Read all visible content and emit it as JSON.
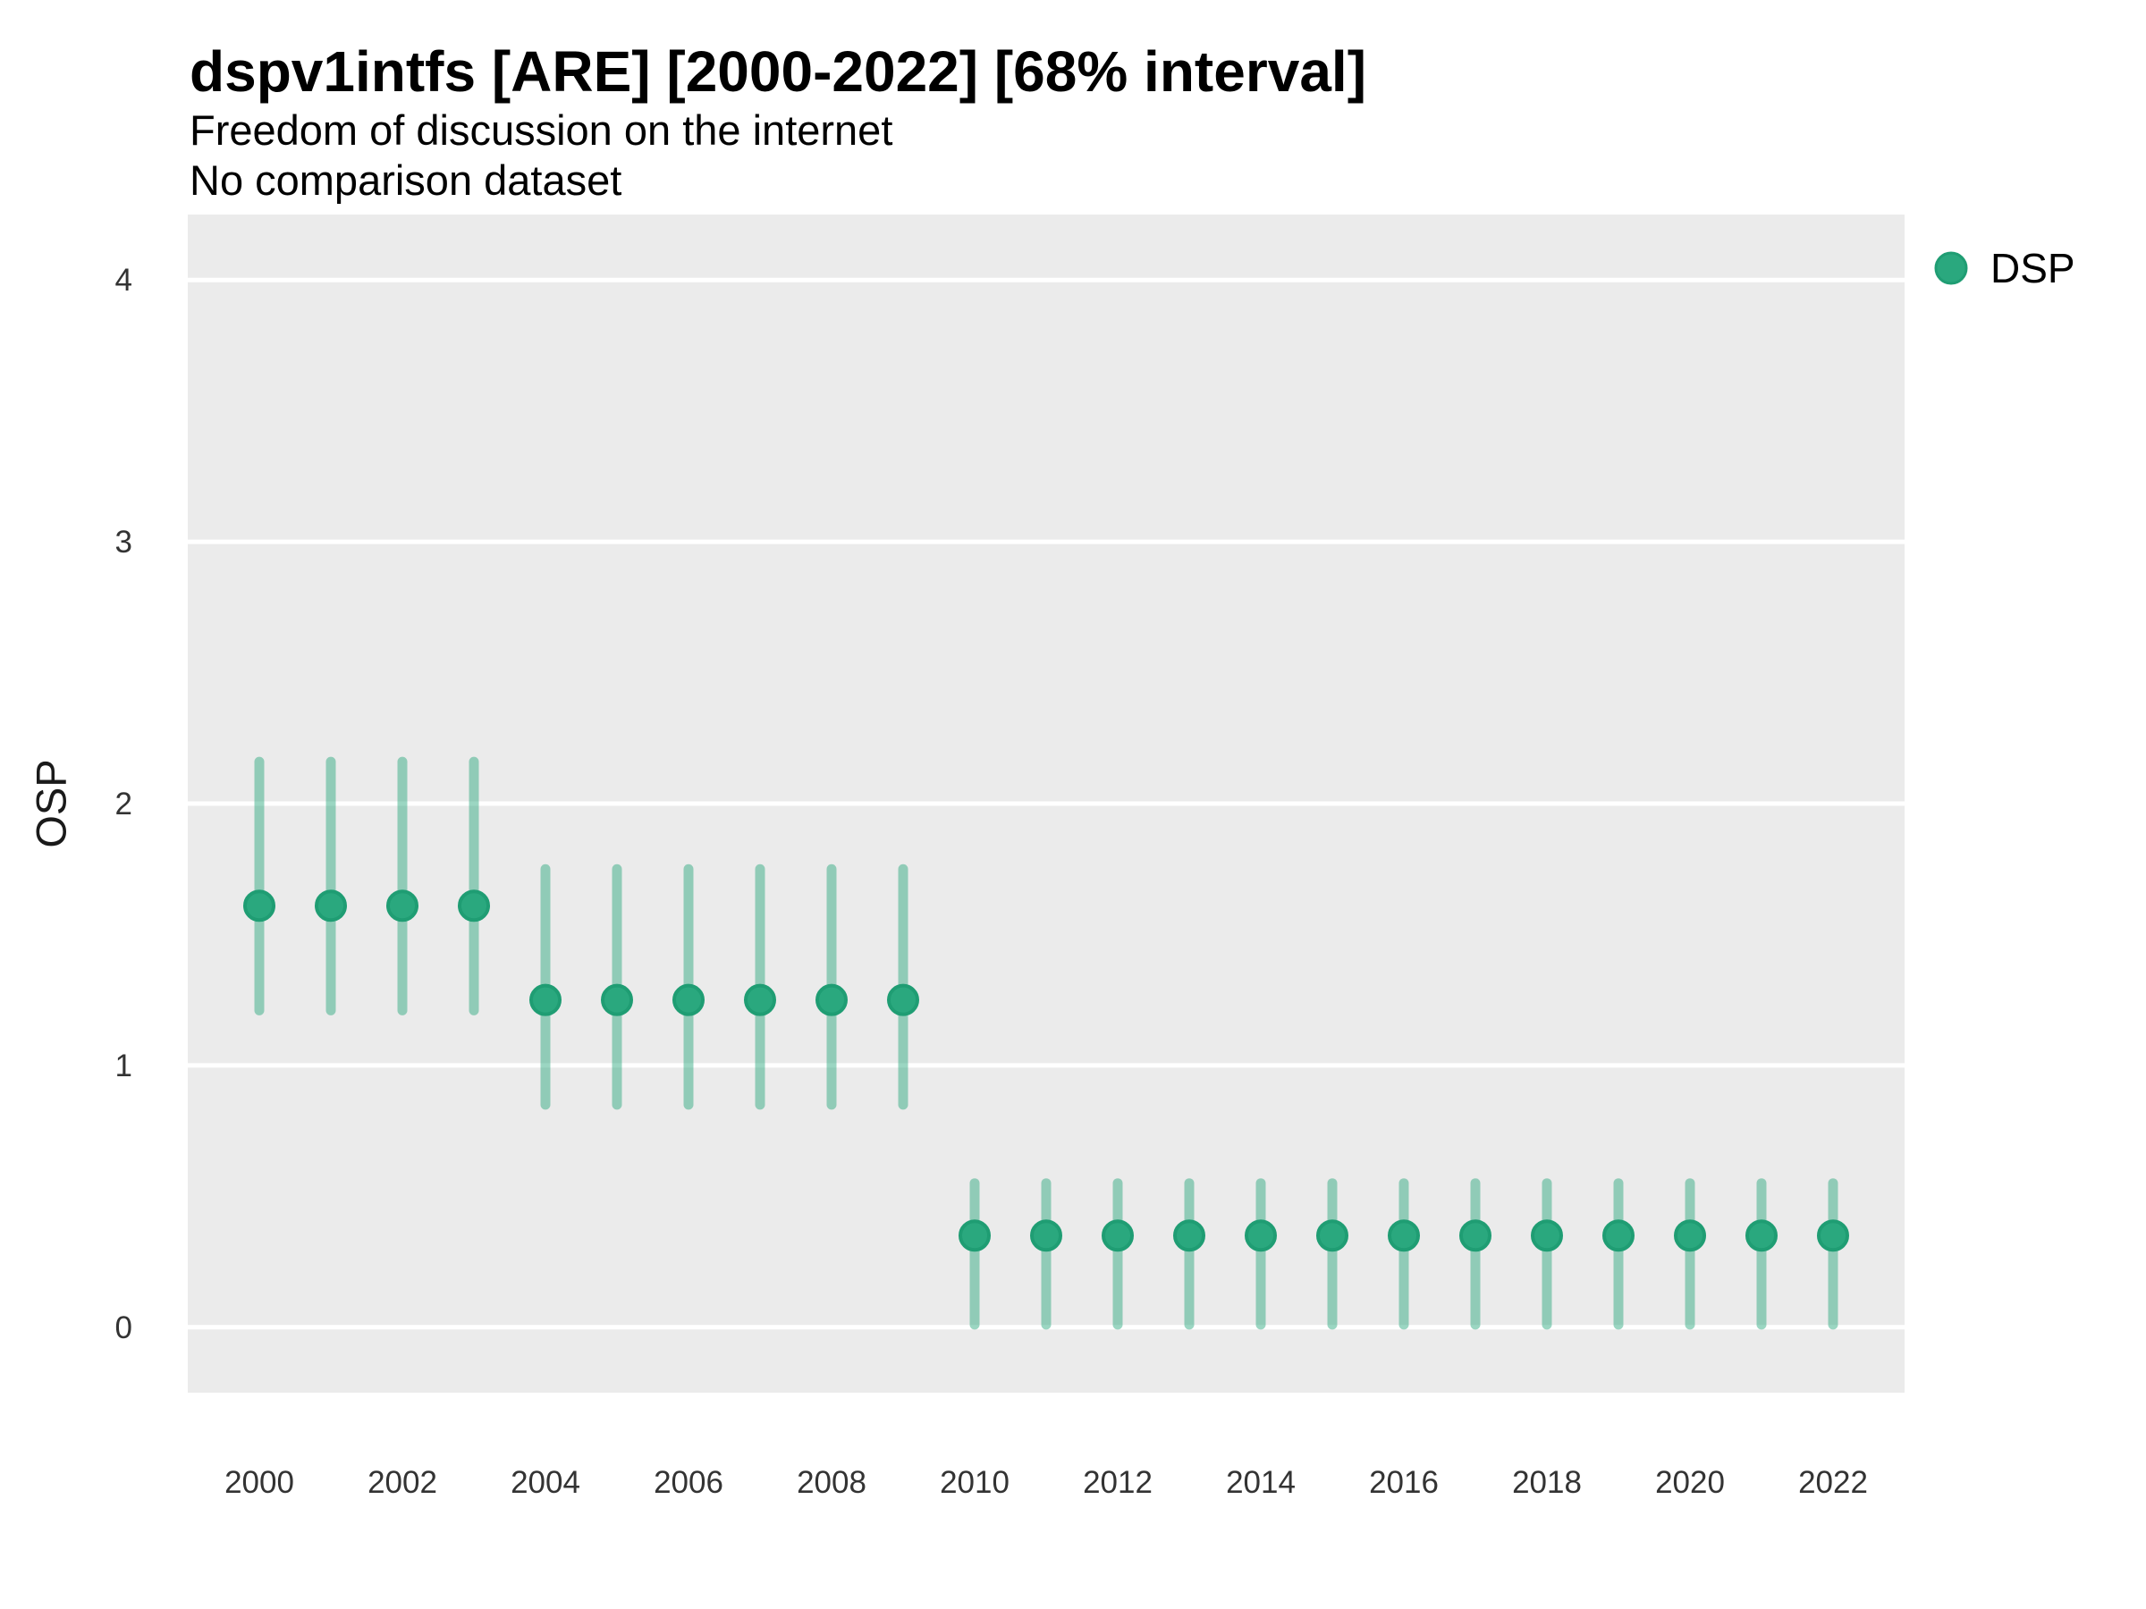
{
  "header": {
    "title": "dspv1intfs [ARE] [2000-2022] [68% interval]",
    "subtitle": "Freedom of discussion on the internet",
    "note": "No comparison dataset"
  },
  "legend": {
    "label": "DSP",
    "position": "right-top"
  },
  "colors": {
    "point": "#2aa87e",
    "point_ring": "#1f9d73",
    "interval": "rgba(42,168,126,0.47)",
    "panel_bg": "#ebebeb",
    "gridline": "#ffffff",
    "tick_text": "#333333"
  },
  "chart_data": {
    "type": "scatter",
    "subtype": "pointrange",
    "title": "dspv1intfs [ARE] [2000-2022] [68% interval]",
    "subtitle": "Freedom of discussion on the internet",
    "note": "No comparison dataset",
    "xlabel": "",
    "ylabel": "OSP",
    "legend_entries": [
      "DSP"
    ],
    "legend_position": "right",
    "grid": "horizontal-major-only",
    "x": [
      2000,
      2001,
      2002,
      2003,
      2004,
      2005,
      2006,
      2007,
      2008,
      2009,
      2010,
      2011,
      2012,
      2013,
      2014,
      2015,
      2016,
      2017,
      2018,
      2019,
      2020,
      2021,
      2022
    ],
    "series": [
      {
        "name": "DSP",
        "interval_level": "68%",
        "values": [
          1.61,
          1.61,
          1.61,
          1.61,
          1.25,
          1.25,
          1.25,
          1.25,
          1.25,
          1.25,
          0.35,
          0.35,
          0.35,
          0.35,
          0.35,
          0.35,
          0.35,
          0.35,
          0.35,
          0.35,
          0.35,
          0.35,
          0.35
        ],
        "lower": [
          1.21,
          1.21,
          1.21,
          1.21,
          0.85,
          0.85,
          0.85,
          0.85,
          0.85,
          0.85,
          0.01,
          0.01,
          0.01,
          0.01,
          0.01,
          0.01,
          0.01,
          0.01,
          0.01,
          0.01,
          0.01,
          0.01,
          0.01
        ],
        "upper": [
          2.16,
          2.16,
          2.16,
          2.16,
          1.75,
          1.75,
          1.75,
          1.75,
          1.75,
          1.75,
          0.55,
          0.55,
          0.55,
          0.55,
          0.55,
          0.55,
          0.55,
          0.55,
          0.55,
          0.55,
          0.55,
          0.55,
          0.55
        ]
      }
    ],
    "xticks": [
      2000,
      2002,
      2004,
      2006,
      2008,
      2010,
      2012,
      2014,
      2016,
      2018,
      2020,
      2022
    ],
    "yticks": [
      0,
      1,
      2,
      3,
      4
    ],
    "xlim": [
      1999,
      2023
    ],
    "ylim": [
      -0.25,
      4.25
    ]
  }
}
